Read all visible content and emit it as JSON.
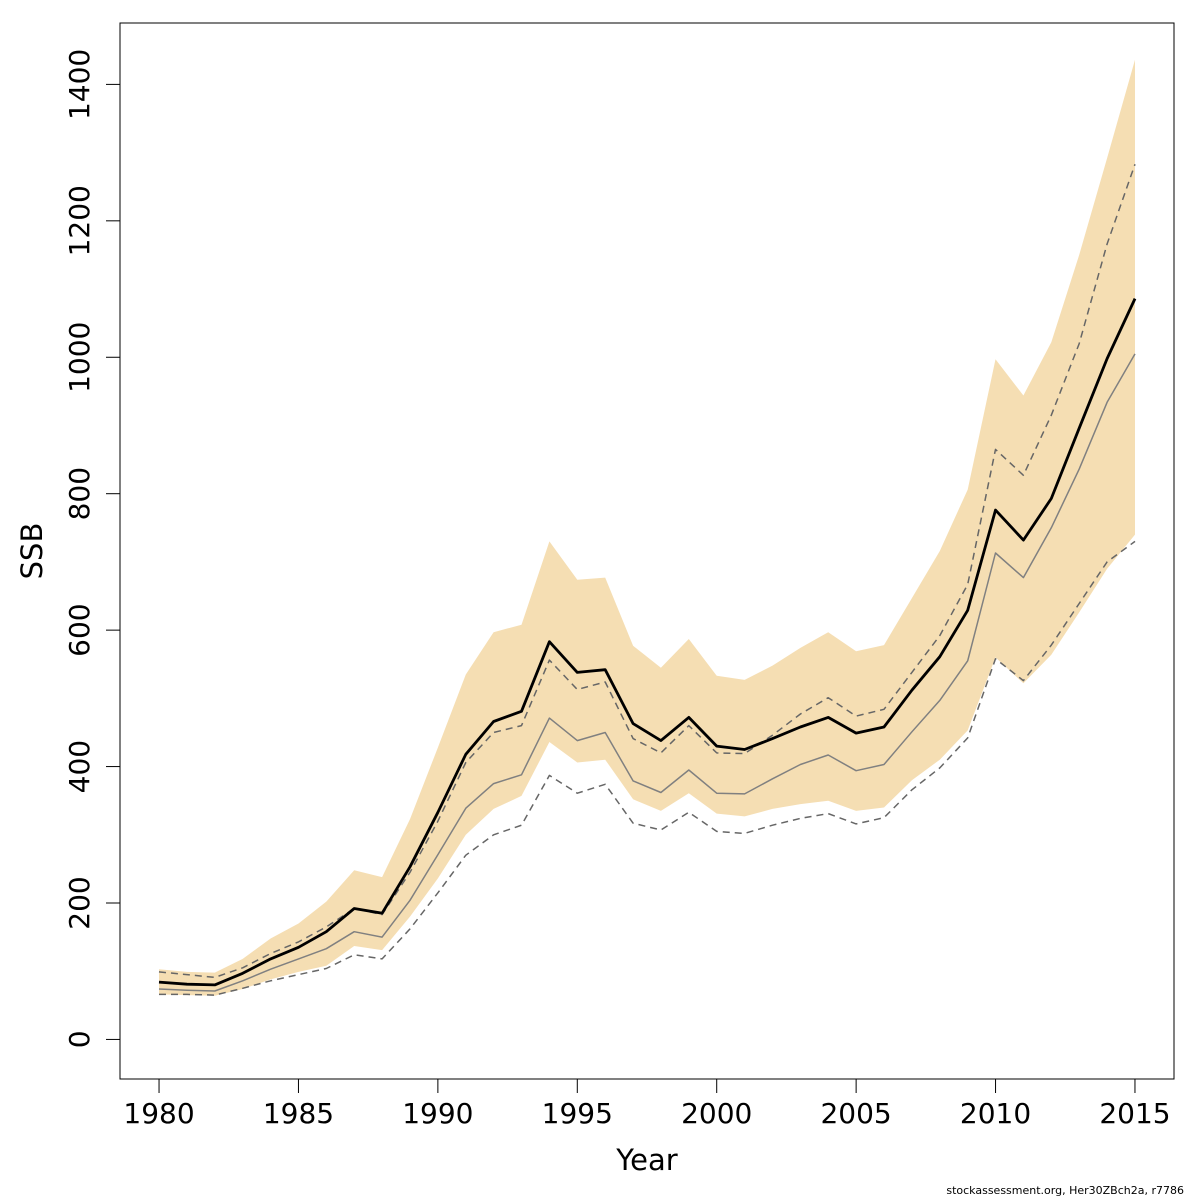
{
  "chart_data": {
    "type": "line",
    "xlabel": "Year",
    "ylabel": "SSB",
    "xlim": [
      1978.6,
      2016.4
    ],
    "ylim": [
      -58,
      1490
    ],
    "x_ticks": [
      "1980",
      "1985",
      "1990",
      "1995",
      "2000",
      "2005",
      "2010",
      "2015"
    ],
    "y_ticks": [
      "0",
      "200",
      "400",
      "600",
      "800",
      "1000",
      "1200",
      "1400"
    ],
    "x": [
      1980,
      1981,
      1982,
      1983,
      1984,
      1985,
      1986,
      1987,
      1988,
      1989,
      1990,
      1991,
      1992,
      1993,
      1994,
      1995,
      1996,
      1997,
      1998,
      1999,
      2000,
      2001,
      2002,
      2003,
      2004,
      2005,
      2006,
      2007,
      2008,
      2009,
      2010,
      2011,
      2012,
      2013,
      2014,
      2015
    ],
    "band": {
      "color": "#f5deb3",
      "upper": [
        103,
        99,
        98,
        118,
        148,
        170,
        202,
        248,
        238,
        323,
        428,
        535,
        597,
        608,
        730,
        674,
        677,
        577,
        545,
        587,
        533,
        527,
        548,
        574,
        597,
        569,
        578,
        647,
        716,
        806,
        997,
        944,
        1022,
        1150,
        1292,
        1436
      ],
      "lower": [
        66,
        65,
        64,
        74,
        88,
        99,
        108,
        137,
        131,
        180,
        236,
        300,
        338,
        357,
        436,
        406,
        410,
        352,
        335,
        361,
        331,
        327,
        338,
        345,
        350,
        335,
        340,
        380,
        410,
        453,
        560,
        522,
        564,
        626,
        690,
        740
      ]
    },
    "series": [
      {
        "color": "#000000",
        "style": "solid",
        "values": [
          84,
          81,
          80,
          97,
          118,
          135,
          158,
          192,
          185,
          253,
          333,
          418,
          466,
          481,
          583,
          538,
          542,
          463,
          438,
          472,
          430,
          425,
          441,
          458,
          472,
          449,
          458,
          512,
          561,
          629,
          776,
          732,
          793,
          896,
          998,
          1086
        ]
      },
      {
        "color": "#808080",
        "style": "solid",
        "values": [
          74,
          72,
          71,
          86,
          103,
          118,
          133,
          158,
          150,
          204,
          271,
          339,
          375,
          388,
          471,
          438,
          450,
          379,
          362,
          395,
          361,
          360,
          382,
          403,
          417,
          394,
          403,
          451,
          497,
          555,
          713,
          677,
          750,
          836,
          934,
          1005
        ]
      },
      {
        "color": "#666666",
        "style": "dashed",
        "values": [
          99,
          95,
          91,
          105,
          126,
          143,
          165,
          192,
          183,
          245,
          320,
          406,
          450,
          460,
          556,
          513,
          524,
          441,
          420,
          460,
          420,
          419,
          446,
          477,
          501,
          474,
          484,
          538,
          592,
          667,
          865,
          827,
          915,
          1020,
          1166,
          1283
        ]
      },
      {
        "color": "#666666",
        "style": "dashed",
        "values": [
          66,
          66,
          65,
          75,
          86,
          95,
          104,
          124,
          118,
          162,
          215,
          270,
          300,
          314,
          387,
          361,
          374,
          317,
          307,
          333,
          305,
          302,
          314,
          324,
          331,
          316,
          325,
          366,
          398,
          442,
          558,
          526,
          578,
          639,
          700,
          730
        ]
      }
    ]
  },
  "footnote": "stockassessment.org, Her30ZBch2a, r7786"
}
